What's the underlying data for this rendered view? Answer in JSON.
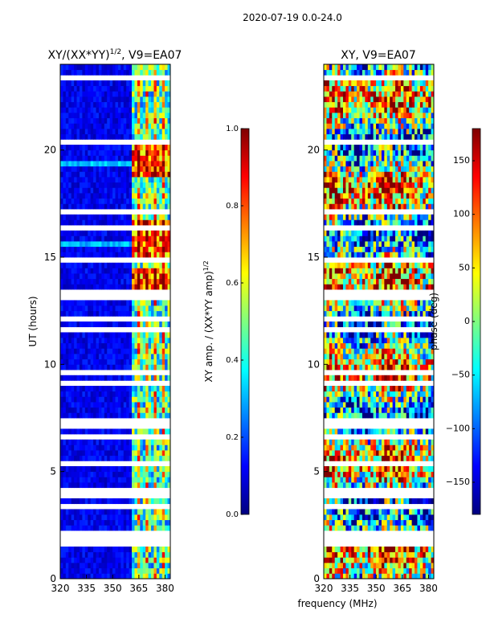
{
  "figure": {
    "suptitle": "2020-07-19 0.0-24.0",
    "xlabel": "frequency (MHz)"
  },
  "chart_data": [
    {
      "type": "heatmap",
      "title_base": "XY/(XX*YY)",
      "title_exp": "1/2",
      "title_tail": ", V9=EA07",
      "xlabel": "frequency (MHz)",
      "ylabel": "UT (hours)",
      "xlim": [
        320,
        383
      ],
      "ylim": [
        0,
        24
      ],
      "xticks": [
        320,
        335,
        350,
        365,
        380
      ],
      "yticks": [
        0,
        5,
        10,
        15,
        20
      ],
      "colorbar": {
        "label_base": "XY amp. / (XX*YY amp)",
        "label_exp": "1/2",
        "range": [
          0.0,
          1.0
        ],
        "ticks": [
          "0.0",
          "0.2",
          "0.4",
          "0.6",
          "0.8",
          "1.0"
        ],
        "colormap": "jet"
      }
    },
    {
      "type": "heatmap",
      "title": "XY, V9=EA07",
      "xlabel": "frequency (MHz)",
      "ylabel": "",
      "xlim": [
        320,
        383
      ],
      "ylim": [
        0,
        24
      ],
      "xticks": [
        320,
        335,
        350,
        365,
        380
      ],
      "yticks": [
        0,
        5,
        10,
        15,
        20
      ],
      "colorbar": {
        "label": "phase (deg)",
        "range": [
          -180,
          180
        ],
        "ticks": [
          "−150",
          "−100",
          "−50",
          "0",
          "50",
          "100",
          "150"
        ],
        "tick_values": [
          -150,
          -100,
          -50,
          0,
          50,
          100,
          150
        ],
        "colormap": "jet"
      }
    }
  ],
  "colors": {
    "jet": [
      "#00007f",
      "#0000ff",
      "#007fff",
      "#00ffff",
      "#7fff7f",
      "#ffff00",
      "#ff7f00",
      "#ff0000",
      "#7f0000"
    ]
  }
}
